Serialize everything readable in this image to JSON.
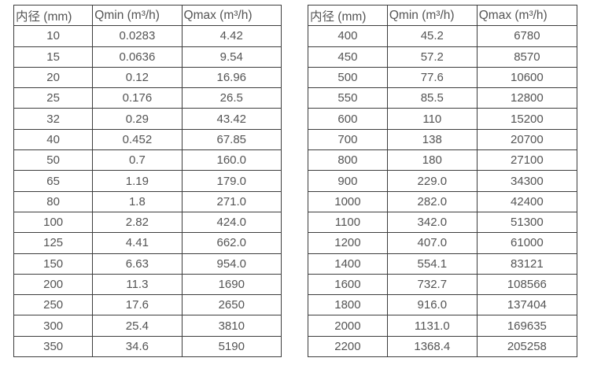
{
  "colors": {
    "background": "#ffffff",
    "text": "#545454",
    "border": "#3d3d3d"
  },
  "chart_data": [
    {
      "type": "table",
      "name": "flow-rate-spec-table-small-diameters",
      "columns": [
        "内径 (mm)",
        "Qmin (m³/h)",
        "Qmax (m³/h)"
      ],
      "rows": [
        [
          "10",
          "0.0283",
          "4.42"
        ],
        [
          "15",
          "0.0636",
          "9.54"
        ],
        [
          "20",
          "0.12",
          "16.96"
        ],
        [
          "25",
          "0.176",
          "26.5"
        ],
        [
          "32",
          "0.29",
          "43.42"
        ],
        [
          "40",
          "0.452",
          "67.85"
        ],
        [
          "50",
          "0.7",
          "160.0"
        ],
        [
          "65",
          "1.19",
          "179.0"
        ],
        [
          "80",
          "1.8",
          "271.0"
        ],
        [
          "100",
          "2.82",
          "424.0"
        ],
        [
          "125",
          "4.41",
          "662.0"
        ],
        [
          "150",
          "6.63",
          "954.0"
        ],
        [
          "200",
          "11.3",
          "1690"
        ],
        [
          "250",
          "17.6",
          "2650"
        ],
        [
          "300",
          "25.4",
          "3810"
        ],
        [
          "350",
          "34.6",
          "5190"
        ]
      ]
    },
    {
      "type": "table",
      "name": "flow-rate-spec-table-large-diameters",
      "columns": [
        "内径 (mm)",
        "Qmin (m³/h)",
        "Qmax (m³/h)"
      ],
      "rows": [
        [
          "400",
          "45.2",
          "6780"
        ],
        [
          "450",
          "57.2",
          "8570"
        ],
        [
          "500",
          "77.6",
          "10600"
        ],
        [
          "550",
          "85.5",
          "12800"
        ],
        [
          "600",
          "110",
          "15200"
        ],
        [
          "700",
          "138",
          "20700"
        ],
        [
          "800",
          "180",
          "27100"
        ],
        [
          "900",
          "229.0",
          "34300"
        ],
        [
          "1000",
          "282.0",
          "42400"
        ],
        [
          "1100",
          "342.0",
          "51300"
        ],
        [
          "1200",
          "407.0",
          "61000"
        ],
        [
          "1400",
          "554.1",
          "83121"
        ],
        [
          "1600",
          "732.7",
          "108566"
        ],
        [
          "1800",
          "916.0",
          "137404"
        ],
        [
          "2000",
          "1131.0",
          "169635"
        ],
        [
          "2200",
          "1368.4",
          "205258"
        ]
      ]
    }
  ]
}
